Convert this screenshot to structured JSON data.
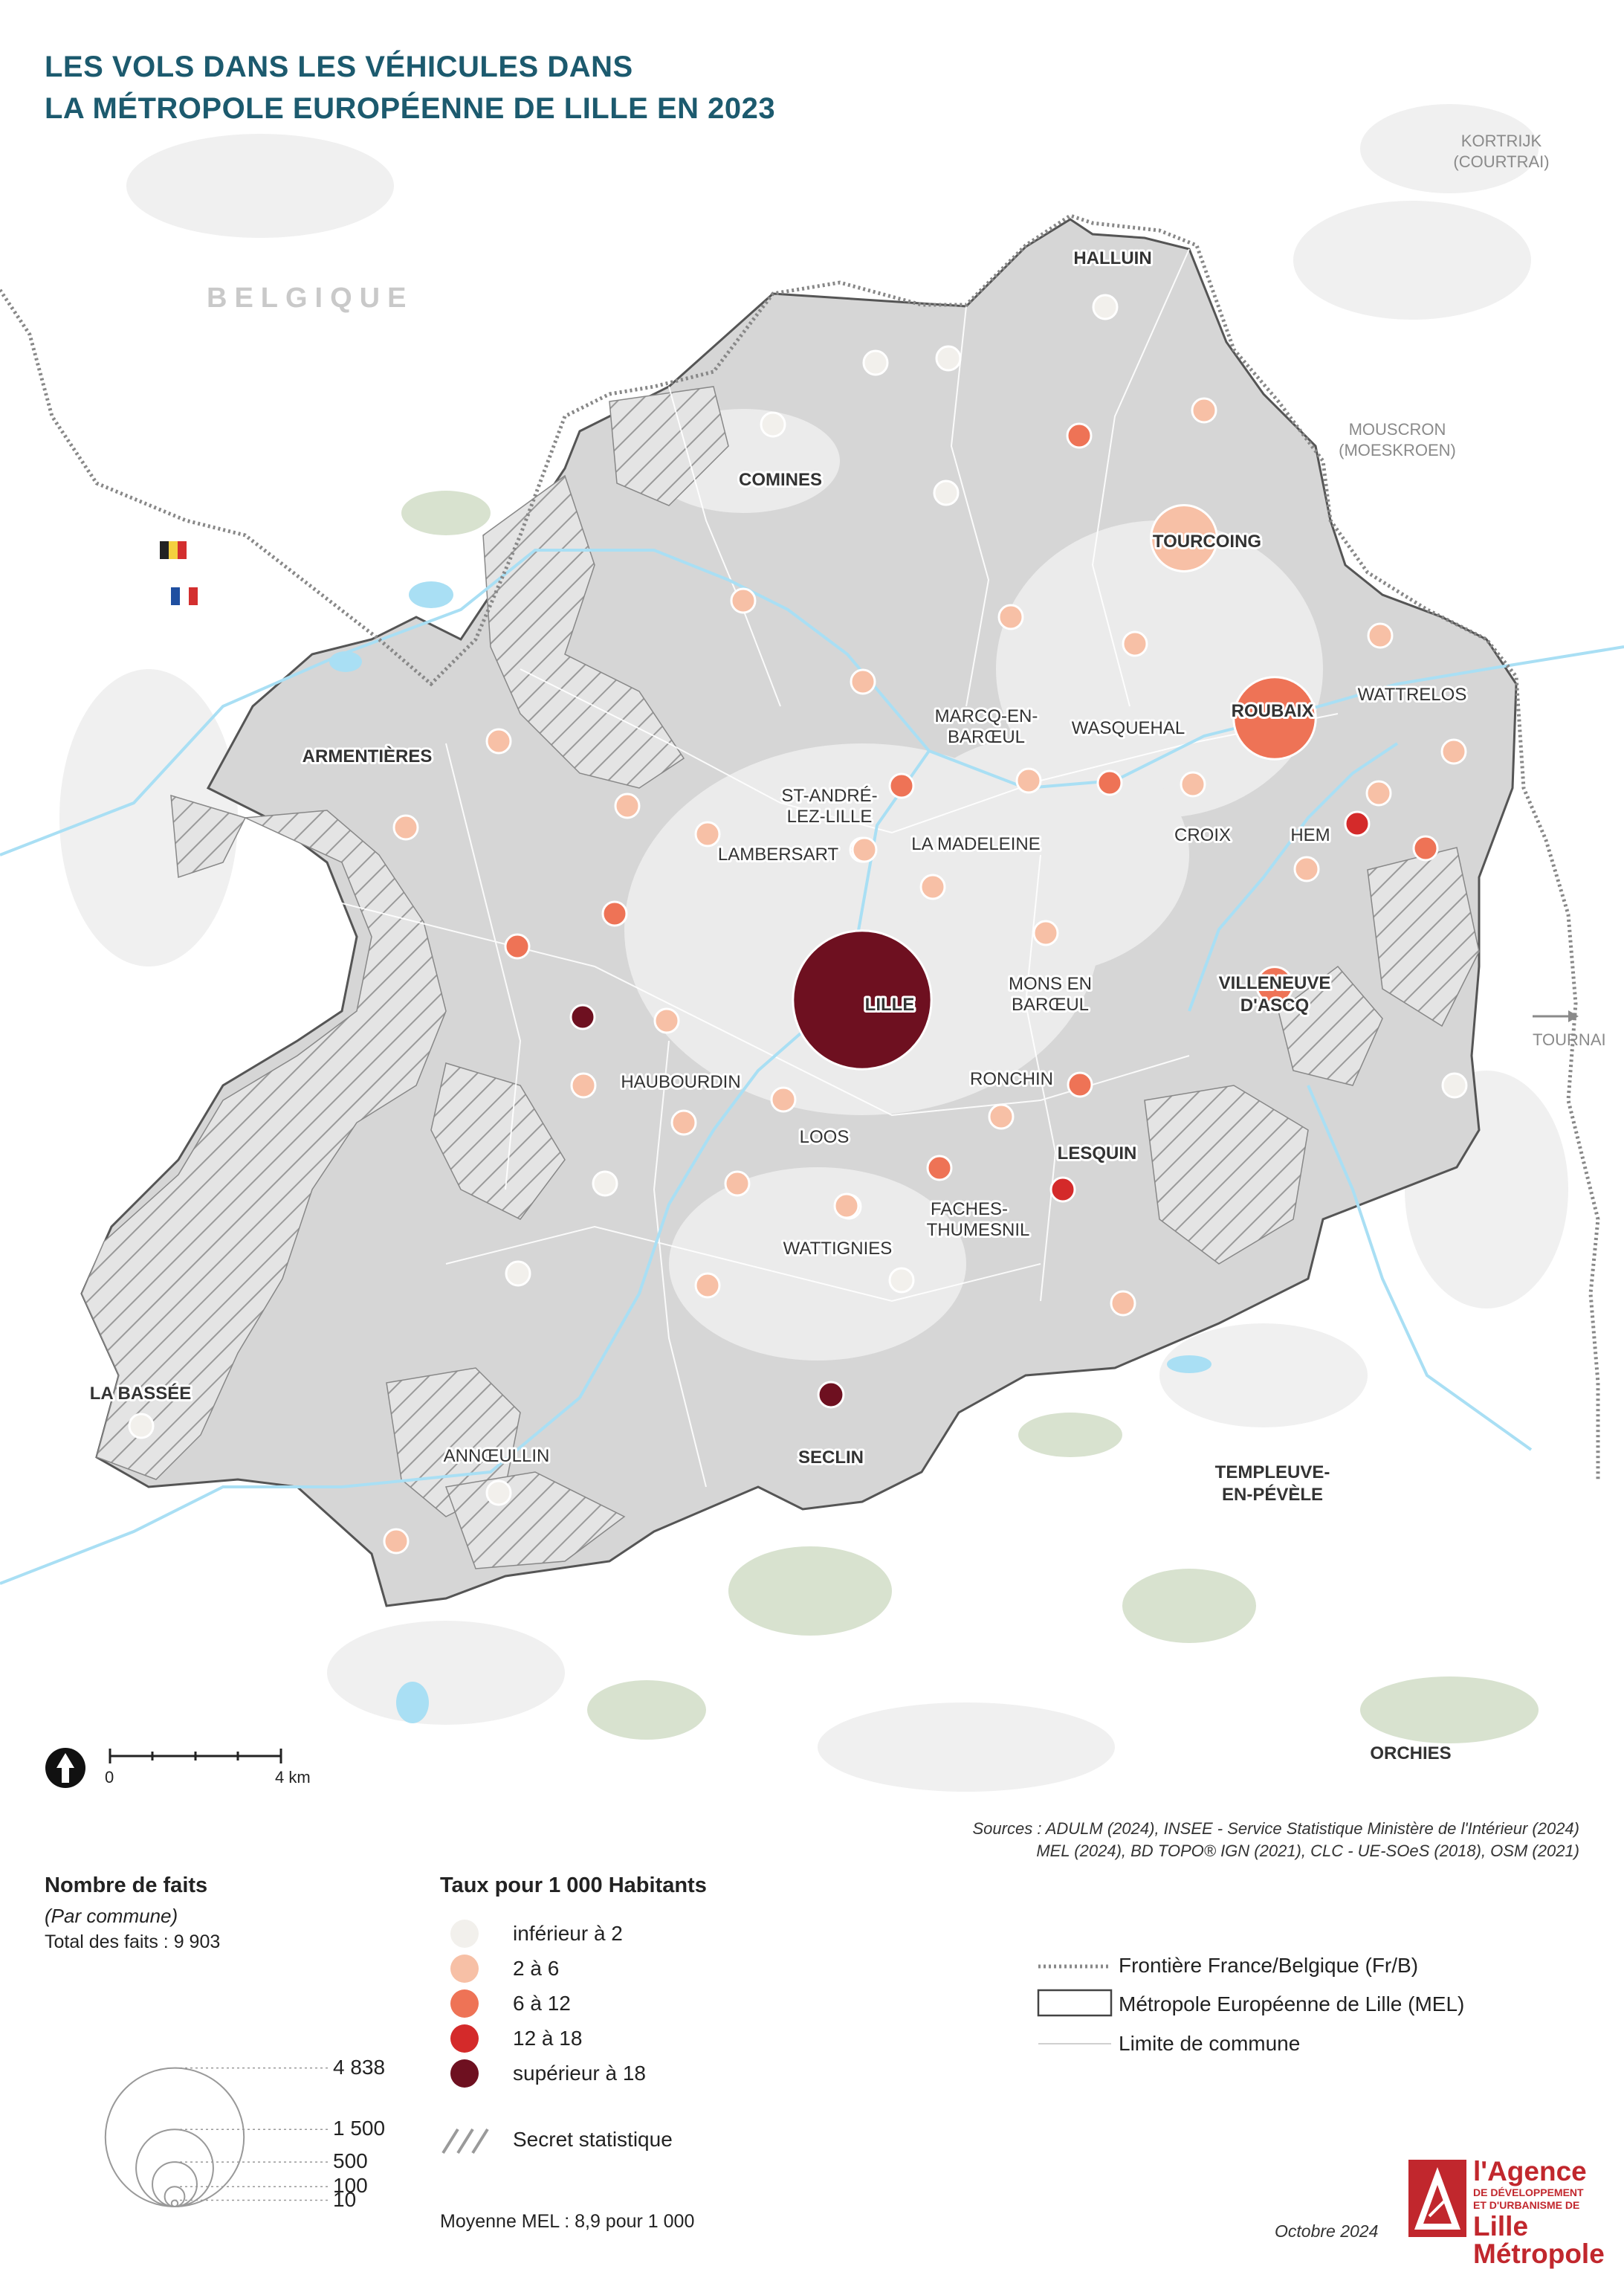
{
  "title": {
    "line1": "LES VOLS DANS LES VÉHICULES DANS",
    "line2": "LA MÉTROPOLE EUROPÉENNE DE LILLE EN 2023"
  },
  "foreign_labels": {
    "belgique": "BELGIQUE",
    "kortrijk": [
      "KORTRIJK",
      "(COURTRAI)"
    ],
    "mouscron": [
      "MOUSCRON",
      "(MOESKROEN)"
    ],
    "tournai": "TOURNAI"
  },
  "colors": {
    "class_lt2": "#f2f0ec",
    "class_2_6": "#f7c0a6",
    "class_6_12": "#ee7356",
    "class_12_18": "#d42a2a",
    "class_gt18": "#6e1020",
    "mel_fill": "#d6d6d6",
    "mel_urban": "#ebebeb",
    "forest": "#d8e2cf",
    "water": "#a9dff4",
    "border": "#888888",
    "title": "#1c5a6e",
    "logo_red": "#c1272d"
  },
  "places": [
    {
      "name": "HALLUIN",
      "bold": true
    },
    {
      "name": "COMINES",
      "bold": true
    },
    {
      "name": "TOURCOING",
      "bold": true
    },
    {
      "name": "ROUBAIX",
      "bold": true
    },
    {
      "name": "WATTRELOS",
      "bold": false
    },
    {
      "name": "ARMENTIÈRES",
      "bold": true
    },
    {
      "name": "MARCQ-EN-",
      "bold": false
    },
    {
      "name": "BARŒUL",
      "bold": false
    },
    {
      "name": "WASQUEHAL",
      "bold": false
    },
    {
      "name": "ST-ANDRÉ-",
      "bold": false
    },
    {
      "name": "LEZ-LILLE",
      "bold": false
    },
    {
      "name": "CROIX",
      "bold": false
    },
    {
      "name": "HEM",
      "bold": false
    },
    {
      "name": "LAMBERSART",
      "bold": false
    },
    {
      "name": "LA MADELEINE",
      "bold": false
    },
    {
      "name": "MONS EN",
      "bold": false
    },
    {
      "name": "BARŒUL",
      "bold": false
    },
    {
      "name": "VILLENEUVE",
      "bold": true
    },
    {
      "name": "D'ASCQ",
      "bold": true
    },
    {
      "name": "LILLE",
      "bold": true
    },
    {
      "name": "HAUBOURDIN",
      "bold": false
    },
    {
      "name": "RONCHIN",
      "bold": false
    },
    {
      "name": "LOOS",
      "bold": false
    },
    {
      "name": "LESQUIN",
      "bold": true
    },
    {
      "name": "FACHES-",
      "bold": false
    },
    {
      "name": "THUMESNIL",
      "bold": false
    },
    {
      "name": "WATTIGNIES",
      "bold": false
    },
    {
      "name": "LA BASSÉE",
      "bold": true
    },
    {
      "name": "SECLIN",
      "bold": true
    },
    {
      "name": "ANNŒULLIN",
      "bold": false
    },
    {
      "name": "TEMPLEUVE-",
      "bold": true
    },
    {
      "name": "EN-PÉVÈLE",
      "bold": true
    },
    {
      "name": "ORCHIES",
      "bold": true
    }
  ],
  "communes": [
    {
      "cls": "lt2",
      "count": 30
    },
    {
      "cls": "lt2",
      "count": 18
    },
    {
      "cls": "lt2",
      "count": 18
    },
    {
      "cls": "6_12",
      "count": 90
    },
    {
      "cls": "2_6",
      "count": 55
    },
    {
      "cls": "lt2",
      "count": 35
    },
    {
      "cls": "lt2",
      "count": 20
    },
    {
      "cls": "2_6",
      "count": 1100
    },
    {
      "cls": "2_6",
      "count": 25
    },
    {
      "cls": "2_6",
      "count": 55
    },
    {
      "cls": "2_6",
      "count": 50
    },
    {
      "cls": "2_6",
      "count": 110
    },
    {
      "cls": "2_6",
      "count": 35
    },
    {
      "cls": "6_12",
      "count": 1700
    },
    {
      "cls": "2_6",
      "count": 65
    },
    {
      "cls": "6_12",
      "count": 50
    },
    {
      "cls": "2_6",
      "count": 25
    },
    {
      "cls": "6_12",
      "count": 75
    },
    {
      "cls": "2_6",
      "count": 90
    },
    {
      "cls": "6_12",
      "count": 120
    },
    {
      "cls": "2_6",
      "count": 80
    },
    {
      "cls": "12_18",
      "count": 25
    },
    {
      "cls": "2_6",
      "count": 60
    },
    {
      "cls": "6_12",
      "count": 30
    },
    {
      "cls": "2_6",
      "count": 45
    },
    {
      "cls": "2_6",
      "count": 25
    },
    {
      "cls": "2_6",
      "count": 20
    },
    {
      "cls": "2_6",
      "count": 45
    },
    {
      "cls": "2_6",
      "count": 70
    },
    {
      "cls": "2_6",
      "count": 75
    },
    {
      "cls": "6_12",
      "count": 22
    },
    {
      "cls": "6_12",
      "count": 22
    },
    {
      "cls": "gt18",
      "count": 95
    },
    {
      "cls": "2_6",
      "count": 30
    },
    {
      "cls": "2_6",
      "count": 20
    },
    {
      "cls": "2_6",
      "count": 65
    },
    {
      "cls": "gt18",
      "count": 4838
    },
    {
      "cls": "2_6",
      "count": 95
    },
    {
      "cls": "2_6",
      "count": 75
    },
    {
      "cls": "6_12",
      "count": 30
    },
    {
      "cls": "2_6",
      "count": 75
    },
    {
      "cls": "6_12",
      "count": 90
    },
    {
      "cls": "12_18",
      "count": 95
    },
    {
      "cls": "2_6",
      "count": 60
    },
    {
      "cls": "lt2",
      "count": 25
    },
    {
      "cls": "2_6",
      "count": 20
    },
    {
      "cls": "lt2",
      "count": 25
    },
    {
      "cls": "lt2",
      "count": 22
    },
    {
      "cls": "2_6",
      "count": 18
    },
    {
      "cls": "2_6",
      "count": 22
    },
    {
      "cls": "lt2",
      "count": 30
    },
    {
      "cls": "gt18",
      "count": 160
    },
    {
      "cls": "lt2",
      "count": 20
    },
    {
      "cls": "2_6",
      "count": 25
    },
    {
      "cls": "lt2",
      "count": 25
    },
    {
      "cls": "6_12",
      "count": 330
    },
    {
      "cls": "2_6",
      "count": 40
    }
  ],
  "scale": {
    "zero": "0",
    "end": "4 km"
  },
  "sources": {
    "line1": "Sources :  ADULM (2024), INSEE - Service Statistique Ministère de l'Intérieur (2024)",
    "line2": "MEL (2024), BD TOPO® IGN (2021), CLC - UE-SOeS (2018), OSM (2021)"
  },
  "legend_size": {
    "title": "Nombre de faits",
    "subtitle": "(Par commune)",
    "total": "Total des faits : 9 903",
    "values": [
      {
        "label": "4 838",
        "count": 4838
      },
      {
        "label": "1 500",
        "count": 1500
      },
      {
        "label": "500",
        "count": 500
      },
      {
        "label": "100",
        "count": 100
      },
      {
        "label": "10",
        "count": 10
      }
    ]
  },
  "legend_color": {
    "title": "Taux pour 1 000 Habitants",
    "classes": [
      {
        "key": "lt2",
        "label": "inférieur à 2"
      },
      {
        "key": "2_6",
        "label": "2 à 6"
      },
      {
        "key": "6_12",
        "label": "6 à 12"
      },
      {
        "key": "12_18",
        "label": "12 à 18"
      },
      {
        "key": "gt18",
        "label": "supérieur à 18"
      }
    ],
    "secret": "Secret statistique",
    "mean": "Moyenne MEL : 8,9 pour 1 000"
  },
  "legend_lines": {
    "border": "Frontière France/Belgique (Fr/B)",
    "mel": "Métropole Européenne de Lille (MEL)",
    "commune": "Limite de commune"
  },
  "date": "Octobre 2024",
  "logo": {
    "line1": "l'Agence",
    "line2": "DE DÉVELOPPEMENT",
    "line3": "ET D'URBANISME DE",
    "line4": "Lille Métropole"
  }
}
